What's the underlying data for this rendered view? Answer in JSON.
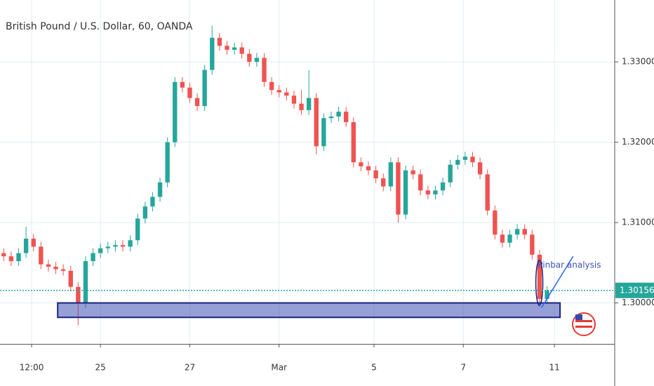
{
  "chart_data": {
    "type": "candlestick",
    "title": "British Pound / U.S. Dollar, 60, OANDA",
    "up_color": "#26a69a",
    "down_color": "#ef5350",
    "x": [
      2,
      6,
      10,
      14,
      18,
      22,
      26,
      30,
      34,
      38,
      42,
      46,
      50,
      54,
      58,
      62,
      66,
      70,
      74,
      78,
      82,
      86,
      90,
      94,
      98,
      102,
      106,
      110,
      114,
      118,
      122,
      126,
      130,
      134,
      138,
      142,
      146,
      150,
      154,
      158,
      162,
      166,
      170,
      174,
      178,
      182,
      186,
      190,
      194,
      198,
      202,
      206,
      210,
      214,
      218,
      222,
      226,
      230,
      234,
      238,
      242,
      246,
      250,
      254,
      258,
      262,
      266,
      270,
      274,
      278,
      282,
      286,
      290,
      294
    ],
    "open": [
      1.3062,
      1.3058,
      1.3052,
      1.3062,
      1.308,
      1.307,
      1.3048,
      1.3045,
      1.3042,
      1.304,
      1.302,
      1.3,
      1.3052,
      1.3062,
      1.3068,
      1.307,
      1.3072,
      1.307,
      1.3078,
      1.3105,
      1.312,
      1.3132,
      1.315,
      1.32,
      1.3275,
      1.3268,
      1.3255,
      1.3245,
      1.329,
      1.333,
      1.332,
      1.3315,
      1.3318,
      1.331,
      1.33,
      1.3305,
      1.3275,
      1.3265,
      1.3262,
      1.3258,
      1.3248,
      1.324,
      1.3255,
      1.3195,
      1.323,
      1.3232,
      1.3238,
      1.3225,
      1.3175,
      1.317,
      1.3165,
      1.3155,
      1.3145,
      1.3175,
      1.311,
      1.3165,
      1.316,
      1.314,
      1.3135,
      1.314,
      1.315,
      1.3172,
      1.3178,
      1.3182,
      1.3175,
      1.316,
      1.3115,
      1.3085,
      1.3075,
      1.3085,
      1.3092,
      1.3085,
      1.306,
      1.3005
    ],
    "high": [
      1.3068,
      1.3064,
      1.3068,
      1.3095,
      1.3086,
      1.3076,
      1.3054,
      1.3051,
      1.3048,
      1.3046,
      1.3026,
      1.3058,
      1.3068,
      1.3074,
      1.3076,
      1.3078,
      1.3078,
      1.3084,
      1.3111,
      1.3126,
      1.3138,
      1.3156,
      1.3206,
      1.3281,
      1.3281,
      1.3274,
      1.3261,
      1.3296,
      1.3345,
      1.3336,
      1.3326,
      1.3324,
      1.3324,
      1.3316,
      1.3311,
      1.3311,
      1.3281,
      1.3271,
      1.3268,
      1.3264,
      1.3265,
      1.329,
      1.3261,
      1.3236,
      1.3238,
      1.3244,
      1.3244,
      1.3231,
      1.3181,
      1.3176,
      1.3171,
      1.3161,
      1.3181,
      1.3181,
      1.3171,
      1.3171,
      1.3166,
      1.3146,
      1.3146,
      1.3156,
      1.3178,
      1.3184,
      1.3188,
      1.3188,
      1.3181,
      1.3166,
      1.3121,
      1.3091,
      1.3091,
      1.3098,
      1.3098,
      1.3091,
      1.3066,
      1.3021
    ],
    "low": [
      1.3052,
      1.3046,
      1.3046,
      1.3056,
      1.3064,
      1.3042,
      1.3039,
      1.3036,
      1.3034,
      1.3014,
      1.2972,
      1.2994,
      1.3046,
      1.3056,
      1.3062,
      1.3064,
      1.3064,
      1.3064,
      1.3072,
      1.3099,
      1.3114,
      1.3126,
      1.3144,
      1.3194,
      1.3262,
      1.3249,
      1.3239,
      1.3239,
      1.3284,
      1.3314,
      1.3309,
      1.3309,
      1.3304,
      1.3294,
      1.3294,
      1.3269,
      1.3259,
      1.3256,
      1.3252,
      1.3242,
      1.3234,
      1.3234,
      1.3185,
      1.3189,
      1.3224,
      1.3226,
      1.3219,
      1.3169,
      1.3164,
      1.3159,
      1.3149,
      1.3139,
      1.3139,
      1.31,
      1.3104,
      1.3154,
      1.3134,
      1.3129,
      1.3129,
      1.3134,
      1.3144,
      1.3166,
      1.3172,
      1.3169,
      1.3154,
      1.3109,
      1.3079,
      1.3069,
      1.3069,
      1.3079,
      1.3079,
      1.3054,
      1.2995,
      1.2999
    ],
    "close": [
      1.3058,
      1.3052,
      1.3062,
      1.308,
      1.307,
      1.3048,
      1.3045,
      1.3042,
      1.304,
      1.302,
      1.3,
      1.3052,
      1.3062,
      1.3068,
      1.307,
      1.3072,
      1.307,
      1.3078,
      1.3105,
      1.312,
      1.3132,
      1.315,
      1.32,
      1.3275,
      1.3268,
      1.3255,
      1.3245,
      1.329,
      1.333,
      1.332,
      1.3315,
      1.3318,
      1.331,
      1.33,
      1.3305,
      1.3275,
      1.3265,
      1.3262,
      1.3258,
      1.3248,
      1.324,
      1.3255,
      1.3195,
      1.323,
      1.3232,
      1.3238,
      1.3225,
      1.3175,
      1.317,
      1.3165,
      1.3155,
      1.3145,
      1.3175,
      1.311,
      1.3165,
      1.316,
      1.314,
      1.3135,
      1.314,
      1.315,
      1.3172,
      1.3178,
      1.3182,
      1.3175,
      1.316,
      1.3115,
      1.3085,
      1.3075,
      1.3085,
      1.3092,
      1.3085,
      1.306,
      1.3005,
      1.3015
    ],
    "xlim": [
      0,
      330
    ],
    "xticks": [
      {
        "value": 17,
        "label": "12:00"
      },
      {
        "value": 54,
        "label": "25"
      },
      {
        "value": 102,
        "label": "27"
      },
      {
        "value": 150,
        "label": "Mar"
      },
      {
        "value": 201,
        "label": "5"
      },
      {
        "value": 249,
        "label": "7"
      },
      {
        "value": 298,
        "label": "11"
      }
    ],
    "ylim": [
      1.2949,
      1.3377
    ],
    "yticks": [
      {
        "value": 1.3,
        "label": "1.30000"
      },
      {
        "value": 1.31,
        "label": "1.31000"
      },
      {
        "value": 1.32,
        "label": "1.32000"
      },
      {
        "value": 1.33,
        "label": "1.33000"
      }
    ],
    "grid": true,
    "last_price": {
      "value": 1.30156,
      "label": "1.30156",
      "color": "#26a69a"
    },
    "zone": {
      "x": [
        31,
        301
      ],
      "y": [
        1.2982,
        1.3
      ],
      "color": "#3f51b5"
    },
    "trendline": {
      "x": [
        291,
        308
      ],
      "y": [
        1.2994,
        1.3058
      ],
      "color": "#2962ff"
    },
    "annotation": {
      "text": "Pinbar analysis",
      "x": 289,
      "y": 1.3047
    }
  }
}
